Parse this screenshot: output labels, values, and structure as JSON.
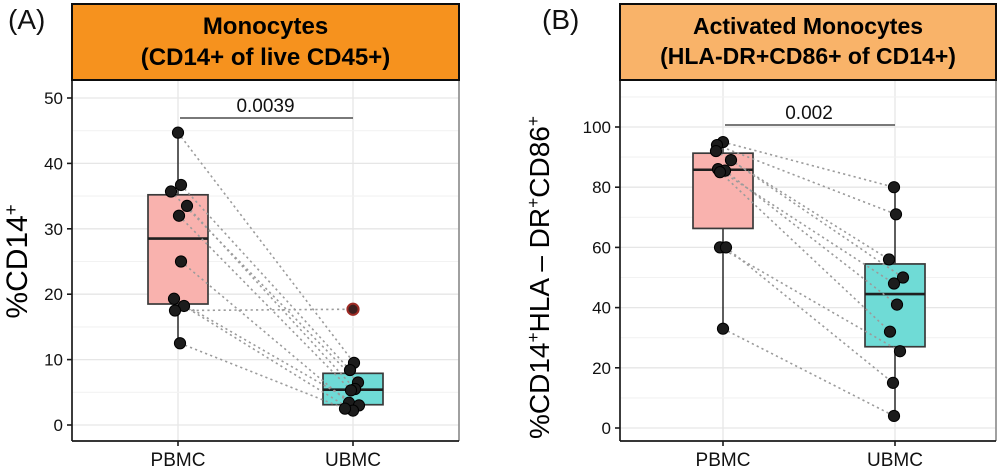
{
  "colors": {
    "panel_a_header_bg": "#F6921E",
    "panel_b_header_bg": "#F9B369",
    "pbmc_box_fill": "#F9B2AE",
    "ubmc_box_fill": "#6FDBD6",
    "box_border": "#3a3a3a",
    "median_line": "#1f1f1f",
    "point_fill": "#1c1c1c",
    "outlier_fill": "#3d1f1f",
    "outlier_stroke": "#9e2b25",
    "pair_line": "#9b9b9b",
    "grid_major": "#e6e6e6",
    "grid_minor": "#f2f2f2",
    "axis_line": "#1a1a1a",
    "panel_border": "#909090",
    "bracket_line": "#4d4d4d"
  },
  "chart_data": [
    {
      "type": "boxplot-paired",
      "panel_label": "(A)",
      "title_lines": [
        "Monocytes",
        "(CD14+ of live CD45+)"
      ],
      "header_bg": "#F6921E",
      "ylabel_segments": [
        {
          "t": "%CD14"
        },
        {
          "t": "+",
          "sup": true
        }
      ],
      "ylim": [
        0,
        52
      ],
      "yticks": [
        0,
        10,
        20,
        30,
        40,
        50
      ],
      "categories": [
        "PBMC",
        "UBMC"
      ],
      "p_value": "0.0039",
      "legend": "none",
      "grid": "on",
      "series": [
        {
          "name": "PBMC",
          "color": "#F9B2AE",
          "box": {
            "min": 12.5,
            "q1": 18.5,
            "median": 28.5,
            "q3": 35.2,
            "max": 44.7
          },
          "outliers": []
        },
        {
          "name": "UBMC",
          "color": "#6FDBD6",
          "box": {
            "min": 2.2,
            "q1": 3.1,
            "median": 5.4,
            "q3": 7.9,
            "max": 9.5
          },
          "outliers": [
            17.7
          ]
        }
      ],
      "pairs": [
        {
          "a": [
            44.7,
            0
          ],
          "b": [
            9.5,
            1
          ]
        },
        {
          "a": [
            36.7,
            3
          ],
          "b": [
            8.4,
            -3
          ]
        },
        {
          "a": [
            35.7,
            -7
          ],
          "b": [
            6.5,
            5
          ]
        },
        {
          "a": [
            33.5,
            9
          ],
          "b": [
            5.5,
            2
          ]
        },
        {
          "a": [
            32.0,
            1
          ],
          "b": [
            5.3,
            -2
          ]
        },
        {
          "a": [
            25.0,
            3
          ],
          "b": [
            3.4,
            -4
          ]
        },
        {
          "a": [
            19.3,
            -4
          ],
          "b": [
            3.0,
            6
          ]
        },
        {
          "a": [
            18.2,
            6
          ],
          "b": [
            2.2,
            0
          ]
        },
        {
          "a": [
            17.5,
            -3
          ],
          "b": [
            17.7,
            0
          ],
          "b_outlier": true
        },
        {
          "a": [
            12.5,
            2
          ],
          "b": [
            2.5,
            -8
          ]
        }
      ]
    },
    {
      "type": "boxplot-paired",
      "panel_label": "(B)",
      "title_lines": [
        "Activated Monocytes",
        "(HLA-DR+CD86+ of CD14+)"
      ],
      "header_bg": "#F9B369",
      "ylabel_segments": [
        {
          "t": "%CD14"
        },
        {
          "t": "+",
          "sup": true
        },
        {
          "t": "HLA – DR"
        },
        {
          "t": "+",
          "sup": true
        },
        {
          "t": "CD86"
        },
        {
          "t": "+",
          "sup": true
        }
      ],
      "ylim": [
        0,
        113
      ],
      "yticks": [
        0,
        20,
        40,
        60,
        80,
        100
      ],
      "categories": [
        "PBMC",
        "UBMC"
      ],
      "p_value": "0.002",
      "legend": "none",
      "grid": "on",
      "series": [
        {
          "name": "PBMC",
          "color": "#F9B2AE",
          "box": {
            "min": 33,
            "q1": 66.3,
            "median": 85.8,
            "q3": 91.3,
            "max": 95
          },
          "outliers": []
        },
        {
          "name": "UBMC",
          "color": "#6FDBD6",
          "box": {
            "min": 4,
            "q1": 27,
            "median": 44.5,
            "q3": 54.5,
            "max": 80
          },
          "outliers": []
        }
      ],
      "pairs": [
        {
          "a": [
            95,
            0
          ],
          "b": [
            80,
            -1
          ]
        },
        {
          "a": [
            94,
            -6
          ],
          "b": [
            71,
            1
          ]
        },
        {
          "a": [
            92,
            -7
          ],
          "b": [
            56,
            -6
          ]
        },
        {
          "a": [
            89,
            8
          ],
          "b": [
            50,
            8
          ]
        },
        {
          "a": [
            86,
            -5
          ],
          "b": [
            48,
            -1
          ]
        },
        {
          "a": [
            85.5,
            2
          ],
          "b": [
            41,
            2
          ]
        },
        {
          "a": [
            85,
            -3
          ],
          "b": [
            32,
            -5
          ]
        },
        {
          "a": [
            60,
            -3
          ],
          "b": [
            25.5,
            5
          ]
        },
        {
          "a": [
            60,
            3
          ],
          "b": [
            15,
            -2
          ]
        },
        {
          "a": [
            33,
            0
          ],
          "b": [
            4,
            -1
          ]
        }
      ]
    }
  ]
}
